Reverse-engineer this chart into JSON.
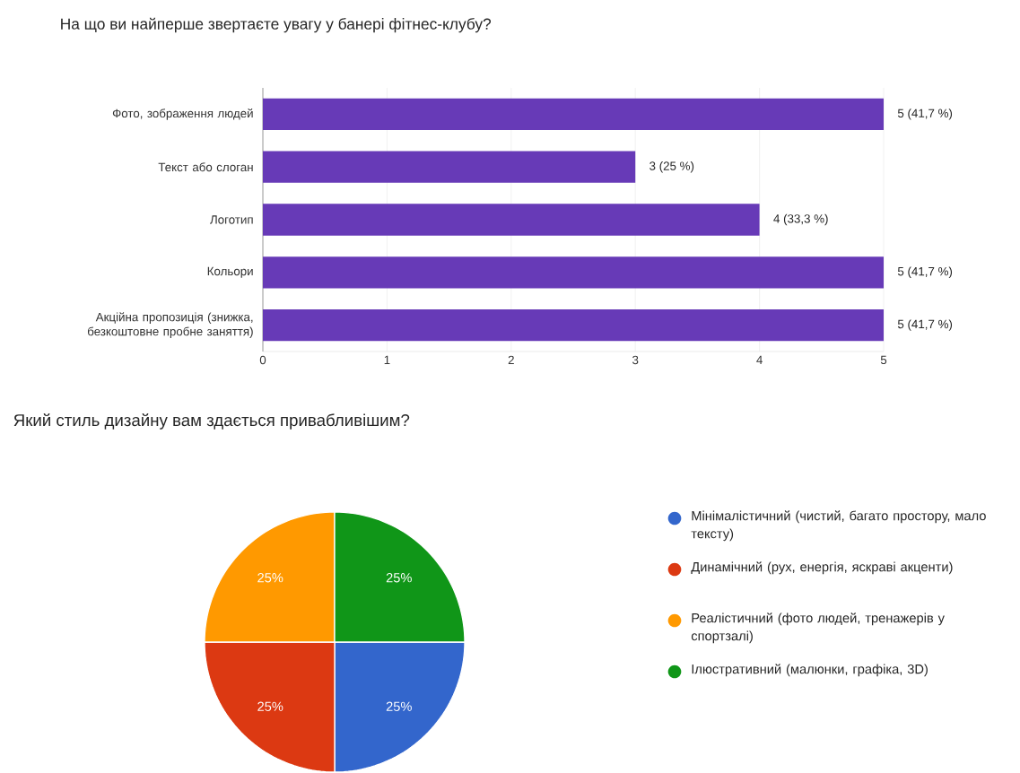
{
  "chart_data": [
    {
      "type": "bar",
      "orientation": "horizontal",
      "title": "На що ви найперше звертаєте увагу у банері фітнес-клубу?",
      "categories": [
        "Фото, зображення людей",
        "Текст або слоган",
        "Логотип",
        "Кольори",
        "Акційна пропозиція (знижка, безкоштовне пробне заняття)"
      ],
      "values": [
        5,
        3,
        4,
        5,
        5
      ],
      "value_labels": [
        "5 (41,7 %)",
        "3 (25 %)",
        "4 (33,3 %)",
        "5 (41,7 %)",
        "5 (41,7 %)"
      ],
      "color": "#673ab7",
      "xlim": [
        0,
        5
      ],
      "xticks": [
        0,
        1,
        2,
        3,
        4,
        5
      ],
      "grid": "x"
    },
    {
      "type": "pie",
      "title": "Який стиль дизайну вам здається привабливішим?",
      "categories": [
        "Мінімалістичний (чистий, багато простору, мало тексту)",
        "Динамічний (рух, енергія, яскраві акценти)",
        "Реалістичний (фото людей, тренажерів у спортзалі)",
        "Ілюстративний (малюнки, графіка, 3D)"
      ],
      "values": [
        25,
        25,
        25,
        25
      ],
      "value_labels": [
        "25%",
        "25%",
        "25%",
        "25%"
      ],
      "colors": [
        "#3366cc",
        "#dc3912",
        "#ff9900",
        "#109618"
      ],
      "legend": "right"
    }
  ]
}
